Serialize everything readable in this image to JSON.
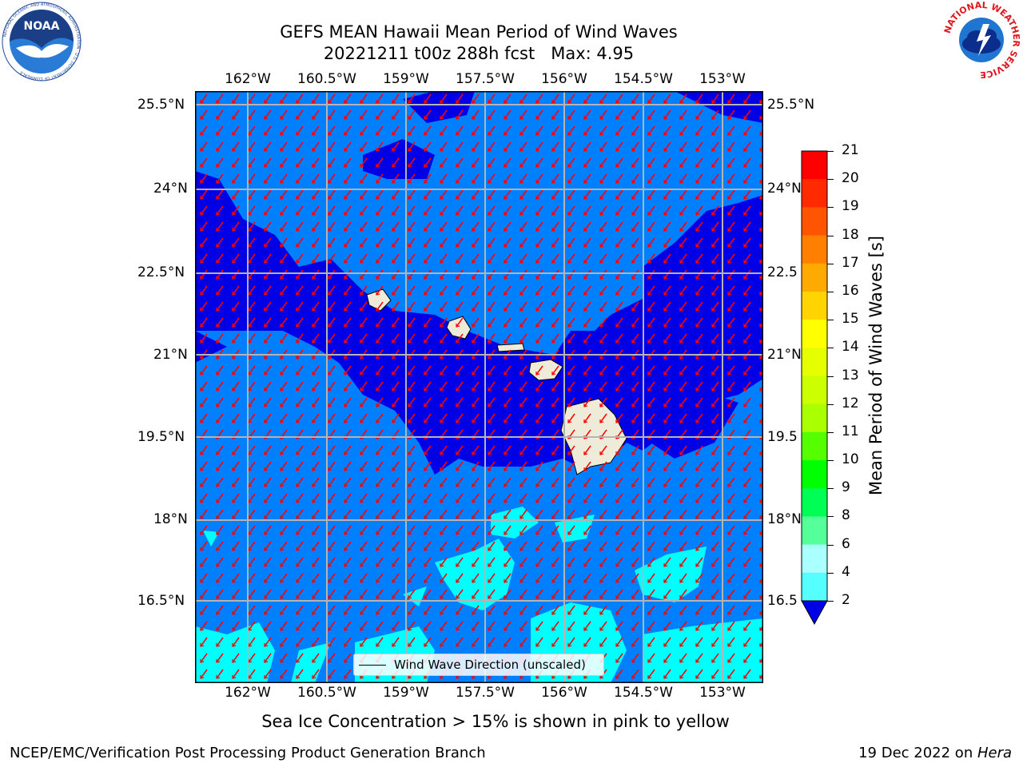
{
  "title": {
    "line1": "GEFS MEAN Hawaii Mean Period of Wind Waves",
    "line2": "20221211 t00z 288h fcst   Max: 4.95"
  },
  "logos": {
    "left": {
      "name": "noaa-logo",
      "text": "NOAA",
      "ring_text": "NATIONAL OCEANIC AND ATMOSPHERIC ADMINISTRATION · U.S. DEPARTMENT OF COMMERCE",
      "colors": {
        "ring": "#ffffff",
        "inner": "#1b4a9c",
        "bird": "#ffffff",
        "bg": "#2a7bd6"
      }
    },
    "right": {
      "name": "nws-logo",
      "ring_text": "NATIONAL WEATHER SERVICE",
      "colors": {
        "ring_text": "#e0161e",
        "inner": "#1f75d0",
        "cloud": "#0b2d8c"
      }
    }
  },
  "map": {
    "lon_ticks": [
      "162°W",
      "160.5°W",
      "159°W",
      "157.5°W",
      "156°W",
      "154.5°W",
      "153°W"
    ],
    "lat_ticks_left": [
      "25.5°N",
      "24°N",
      "22.5°N",
      "21°N",
      "19.5°N",
      "18°N",
      "16.5°N"
    ],
    "lat_ticks_right": [
      "25.5°N",
      "24°N",
      "22.5",
      "21°N",
      "19.5",
      "18°N",
      "16.5"
    ],
    "colors": {
      "bin_2_4": "#007fff",
      "below_2": "#0000e6",
      "bin_4_6": "#00ffff",
      "land": "#efebd9",
      "arrows": "#ff0000",
      "grid": "#b4b4b4"
    },
    "legend": {
      "label": "Wind Wave Direction (unscaled)"
    },
    "extent": {
      "lon_min": -163.0,
      "lon_max": -152.2,
      "lat_min": 15.1,
      "lat_max": 25.7
    }
  },
  "colorbar": {
    "label": "Mean Period of Wind Waves [s]",
    "ticks": [
      "21",
      "20",
      "19",
      "18",
      "17",
      "16",
      "15",
      "14",
      "13",
      "12",
      "11",
      "10",
      "9",
      "8",
      "6",
      "4",
      "2"
    ],
    "colors": [
      "#ff0000",
      "#ff2a00",
      "#ff5500",
      "#ff7f00",
      "#ffaa00",
      "#ffd400",
      "#ffff00",
      "#e6ff00",
      "#ccff00",
      "#aaff00",
      "#55ff00",
      "#00ff00",
      "#00ff55",
      "#55ff99",
      "#aaffff",
      "#55ffff",
      "#00ffff",
      "#007fff"
    ],
    "extend_color": "#0000e6"
  },
  "note": "Sea Ice Concentration > 15% is shown in pink to yellow",
  "footer": {
    "left": "NCEP/EMC/Verification Post Processing Product Generation Branch",
    "right_prefix": "19 Dec 2022 on ",
    "right_host": "Hera"
  }
}
